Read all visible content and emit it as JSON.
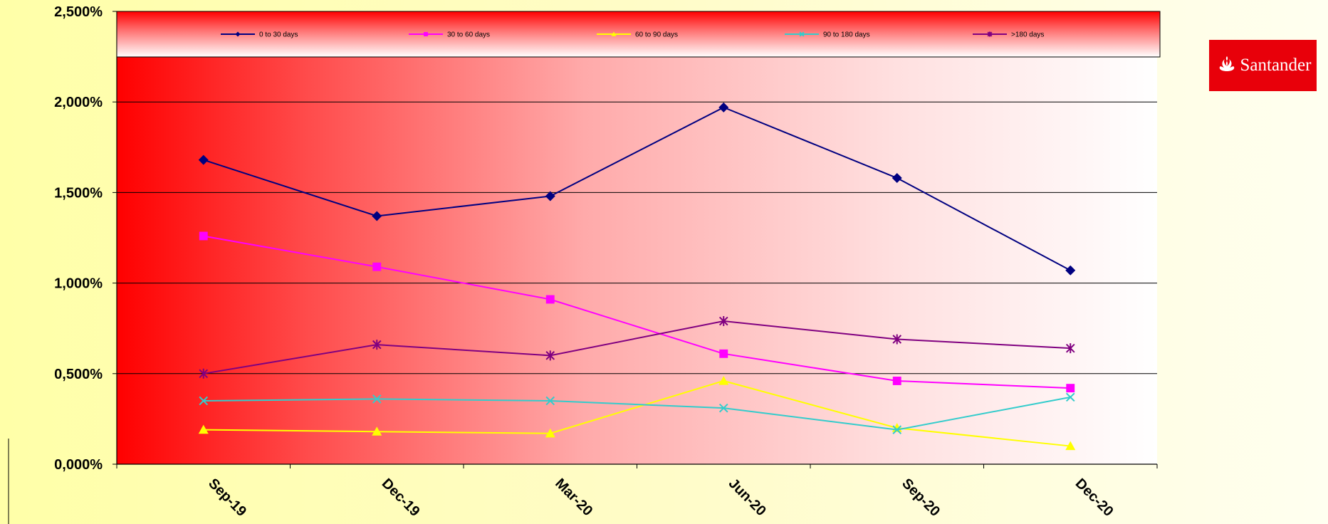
{
  "brand": {
    "name": "Santander",
    "color": "#e8000a"
  },
  "chart_data": {
    "type": "line",
    "categories": [
      "Sep-19",
      "Dec-19",
      "Mar-20",
      "Jun-20",
      "Sep-20",
      "Dec-20"
    ],
    "ylim": [
      0,
      2.5
    ],
    "yticks": [
      0,
      0.5,
      1.0,
      1.5,
      2.0,
      2.5
    ],
    "ytick_labels": [
      "0,000%",
      "0,500%",
      "1,000%",
      "1,500%",
      "2,000%",
      "2,500%"
    ],
    "grid": true,
    "legend_position": "top",
    "series": [
      {
        "name": "0 to  30 days",
        "color": "#000080",
        "marker": "diamond",
        "values": [
          1.68,
          1.37,
          1.48,
          1.97,
          1.58,
          1.07
        ]
      },
      {
        "name": "30 to 60 days",
        "color": "#ff00ff",
        "marker": "square",
        "values": [
          1.26,
          1.09,
          0.91,
          0.61,
          0.46,
          0.42
        ]
      },
      {
        "name": "60 to 90 days",
        "color": "#ffff00",
        "marker": "triangle",
        "values": [
          0.19,
          0.18,
          0.17,
          0.46,
          0.2,
          0.1
        ]
      },
      {
        "name": "90 to 180 days",
        "color": "#33cccc",
        "marker": "x",
        "values": [
          0.35,
          0.36,
          0.35,
          0.31,
          0.19,
          0.37
        ]
      },
      {
        "name": ">180 days",
        "color": "#800080",
        "marker": "asterisk",
        "values": [
          0.5,
          0.66,
          0.6,
          0.79,
          0.69,
          0.64
        ]
      }
    ]
  }
}
